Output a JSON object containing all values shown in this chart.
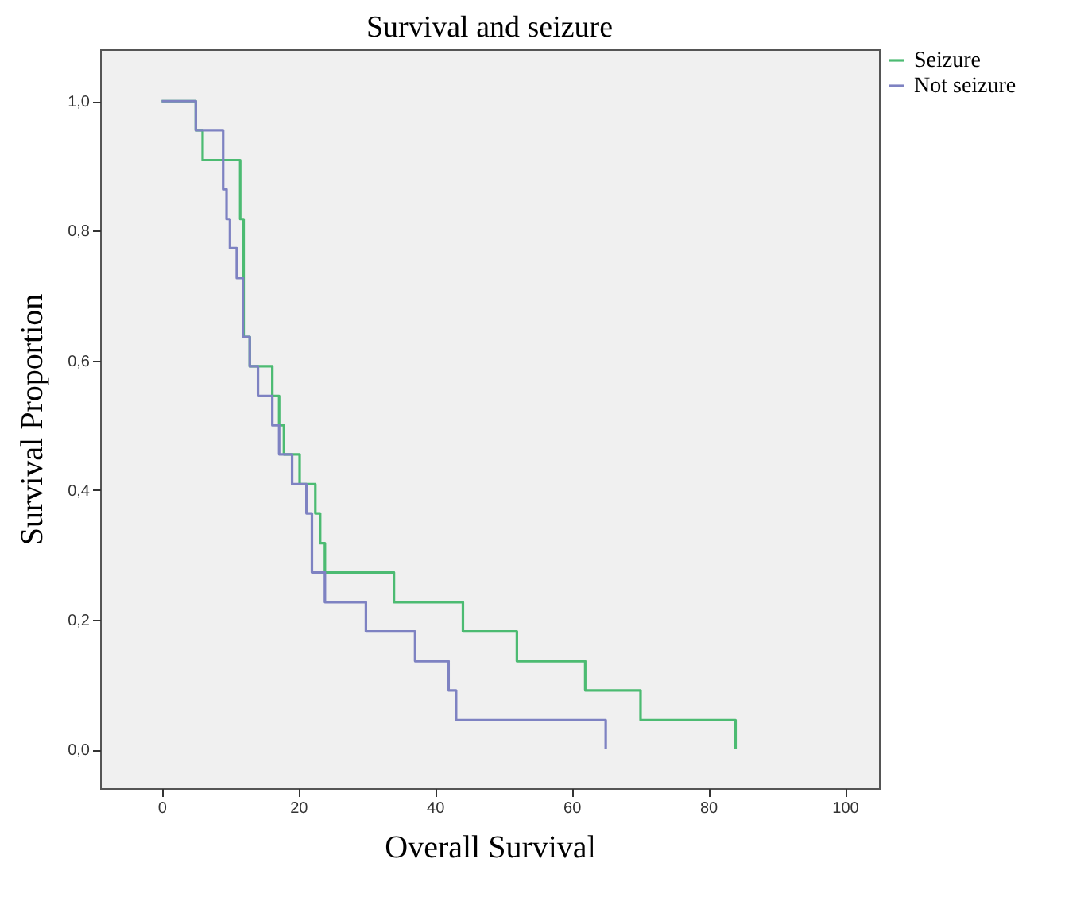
{
  "chart_data": {
    "type": "step",
    "title": "Survival and seizure",
    "xlabel": "Overall Survival",
    "ylabel": "Survival Proportion",
    "xlim": [
      -9,
      105
    ],
    "xticks": [
      0,
      20,
      40,
      60,
      80,
      100
    ],
    "ylim": [
      -0.06,
      1.08
    ],
    "yticks": [
      {
        "value": 0,
        "label": "0,0"
      },
      {
        "value": 0.2,
        "label": "0,2"
      },
      {
        "value": 0.4,
        "label": "0,4"
      },
      {
        "value": 0.6,
        "label": "0,6"
      },
      {
        "value": 0.8,
        "label": "0,8"
      },
      {
        "value": 1,
        "label": "1,0"
      }
    ],
    "legend": "right",
    "grid": false,
    "marker": "none",
    "line_style": "solid",
    "series": [
      {
        "name": "Seizure",
        "color": "#4cbb72",
        "x": [
          0,
          5,
          6,
          11.5,
          12,
          12.9,
          16.2,
          17.2,
          17.9,
          20.2,
          22.5,
          23.2,
          23.9,
          34,
          44.1,
          52,
          62,
          70.1,
          84
        ],
        "values": [
          1,
          0.955,
          0.909,
          0.818,
          0.636,
          0.591,
          0.545,
          0.5,
          0.455,
          0.409,
          0.364,
          0.318,
          0.273,
          0.227,
          0.182,
          0.136,
          0.091,
          0.045,
          0
        ]
      },
      {
        "name": "Not seizure",
        "color": "#7e82c2",
        "x": [
          0,
          5,
          9,
          9.5,
          10,
          11,
          11.9,
          12.9,
          14.1,
          16.2,
          17.2,
          19.1,
          21.2,
          22,
          23.9,
          29.9,
          37.1,
          42,
          43.1,
          65
        ],
        "values": [
          1,
          0.955,
          0.864,
          0.818,
          0.773,
          0.727,
          0.636,
          0.591,
          0.545,
          0.5,
          0.455,
          0.409,
          0.364,
          0.273,
          0.227,
          0.182,
          0.136,
          0.091,
          0.045,
          0
        ]
      }
    ]
  }
}
